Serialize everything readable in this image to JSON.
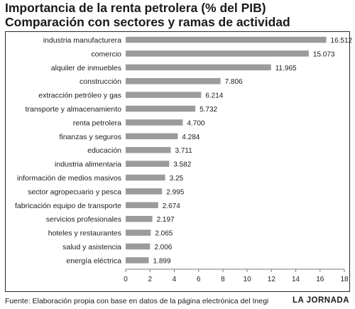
{
  "chart_data": {
    "type": "bar",
    "orientation": "horizontal",
    "title": "Importancia de la renta petrolera (% del PIB)",
    "subtitle": "Comparación con sectores y ramas de actividad",
    "categories": [
      "industria manufacturera",
      "comercio",
      "alquiler de inmuebles",
      "construcción",
      "extracción petróleo y gas",
      "transporte y almacenamiento",
      "renta petrolera",
      "finanzas y seguros",
      "educación",
      "industria alimentaria",
      "información de medios masivos",
      "sector agropecuario y pesca",
      "fabricación equipo de transporte",
      "servicios profesionales",
      "hoteles y restaurantes",
      "salud y asistencia",
      "energía eléctrica"
    ],
    "values": [
      16.512,
      15.073,
      11.965,
      7.806,
      6.214,
      5.732,
      4.7,
      4.284,
      3.711,
      3.582,
      3.25,
      2.995,
      2.674,
      2.197,
      2.065,
      2.006,
      1.899
    ],
    "value_labels": [
      "16.512",
      "15.073",
      "11.965",
      "7.806",
      "6.214",
      "5.732",
      "4.700",
      "4.284",
      "3.711",
      "3.582",
      "3.25",
      "2.995",
      "2.674",
      "2.197",
      "2.065",
      "2.006",
      "1.899"
    ],
    "xlim": [
      0,
      18
    ],
    "xticks": [
      0,
      2,
      4,
      6,
      8,
      10,
      12,
      14,
      16,
      18
    ],
    "grid": false,
    "bar_color": "#9b9b9b"
  },
  "footer": {
    "source": "Fuente: Elaboración propia con base en datos de la página electrónica del Inegi",
    "brand": "LA JORNADA"
  }
}
